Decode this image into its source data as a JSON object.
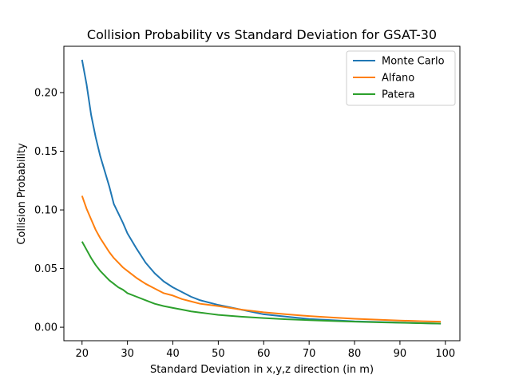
{
  "chart_data": {
    "type": "line",
    "title": "Collision Probability vs Standard Deviation for GSAT-30",
    "xlabel": "Standard Deviation in x,y,z direction (in m)",
    "ylabel": "Collision Probability",
    "xlim": [
      16,
      103.2
    ],
    "ylim": [
      -0.0115,
      0.2395
    ],
    "xticks": [
      20,
      30,
      40,
      50,
      60,
      70,
      80,
      90,
      100
    ],
    "yticks": [
      0.0,
      0.05,
      0.1,
      0.15,
      0.2
    ],
    "ytick_labels": [
      "0.00",
      "0.05",
      "0.10",
      "0.15",
      "0.20"
    ],
    "grid": false,
    "legend_position": "top-right",
    "x": [
      20,
      21,
      22,
      23,
      24,
      25,
      26,
      27,
      28,
      29,
      30,
      32,
      34,
      36,
      38,
      40,
      42,
      44,
      46,
      48,
      50,
      55,
      60,
      65,
      70,
      75,
      80,
      85,
      90,
      95,
      99
    ],
    "series": [
      {
        "name": "Monte Carlo",
        "color": "#1f77b4",
        "values": [
          0.228,
          0.207,
          0.181,
          0.162,
          0.146,
          0.133,
          0.12,
          0.105,
          0.097,
          0.089,
          0.08,
          0.067,
          0.055,
          0.046,
          0.039,
          0.034,
          0.03,
          0.026,
          0.023,
          0.021,
          0.019,
          0.015,
          0.011,
          0.009,
          0.007,
          0.006,
          0.005,
          0.0045,
          0.004,
          0.0035,
          0.003
        ]
      },
      {
        "name": "Alfano",
        "color": "#ff7f0e",
        "values": [
          0.112,
          0.101,
          0.092,
          0.083,
          0.076,
          0.07,
          0.064,
          0.059,
          0.055,
          0.051,
          0.048,
          0.042,
          0.037,
          0.033,
          0.029,
          0.027,
          0.024,
          0.022,
          0.02,
          0.019,
          0.018,
          0.015,
          0.0127,
          0.011,
          0.0095,
          0.0083,
          0.0072,
          0.0064,
          0.0057,
          0.0051,
          0.0047
        ]
      },
      {
        "name": "Patera",
        "color": "#2ca02c",
        "values": [
          0.073,
          0.066,
          0.059,
          0.053,
          0.048,
          0.044,
          0.04,
          0.037,
          0.034,
          0.032,
          0.029,
          0.026,
          0.023,
          0.02,
          0.018,
          0.0165,
          0.015,
          0.0135,
          0.0125,
          0.0115,
          0.0105,
          0.009,
          0.0078,
          0.0068,
          0.006,
          0.0053,
          0.0047,
          0.0042,
          0.0038,
          0.0034,
          0.0031
        ]
      }
    ]
  }
}
